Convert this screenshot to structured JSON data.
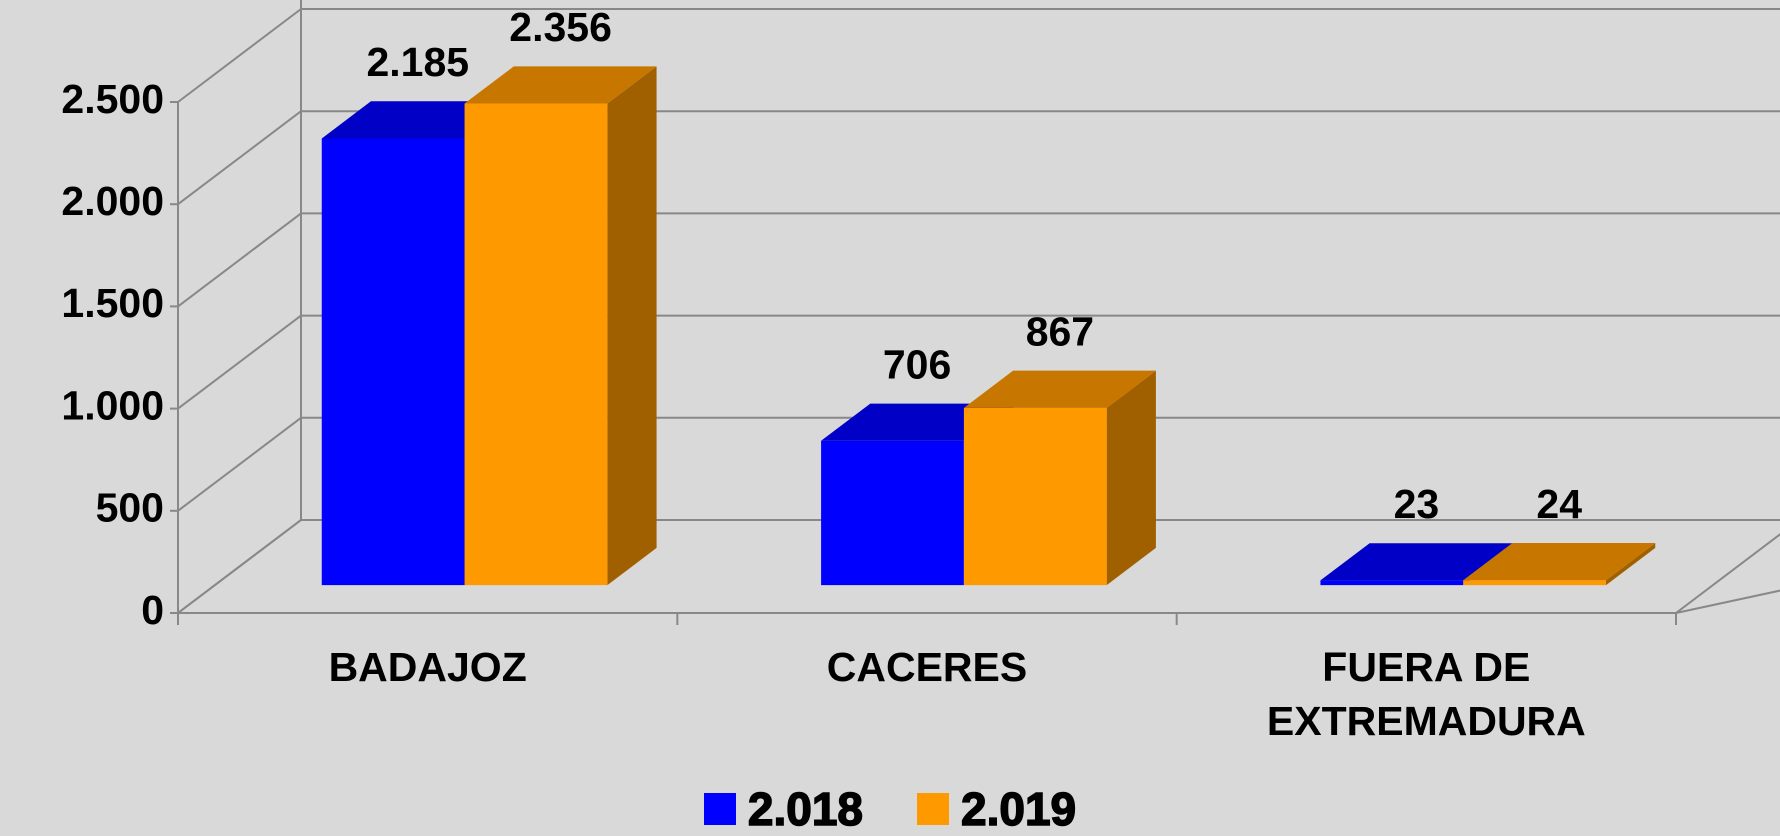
{
  "chart_data": {
    "type": "bar3d",
    "categories": [
      "BADAJOZ",
      "CACERES",
      "FUERA DE EXTREMADURA"
    ],
    "series": [
      {
        "name": "2.018",
        "color": "#0000ff",
        "values": [
          2185,
          706,
          23
        ],
        "value_labels": [
          "2.185",
          "706",
          "23"
        ]
      },
      {
        "name": "2.019",
        "color": "#ff9900",
        "values": [
          2356,
          867,
          24
        ],
        "value_labels": [
          "2.356",
          "867",
          "24"
        ]
      }
    ],
    "ylim": [
      0,
      2500
    ],
    "yticks": [
      0,
      500,
      {
        "value": 1000,
        "label": "1.000"
      },
      {
        "value": 1500,
        "label": "1.500"
      },
      {
        "value": 2000,
        "label": "2.000"
      },
      {
        "value": 2500,
        "label": "2.500"
      }
    ],
    "grid": true,
    "legend": "bottom"
  }
}
